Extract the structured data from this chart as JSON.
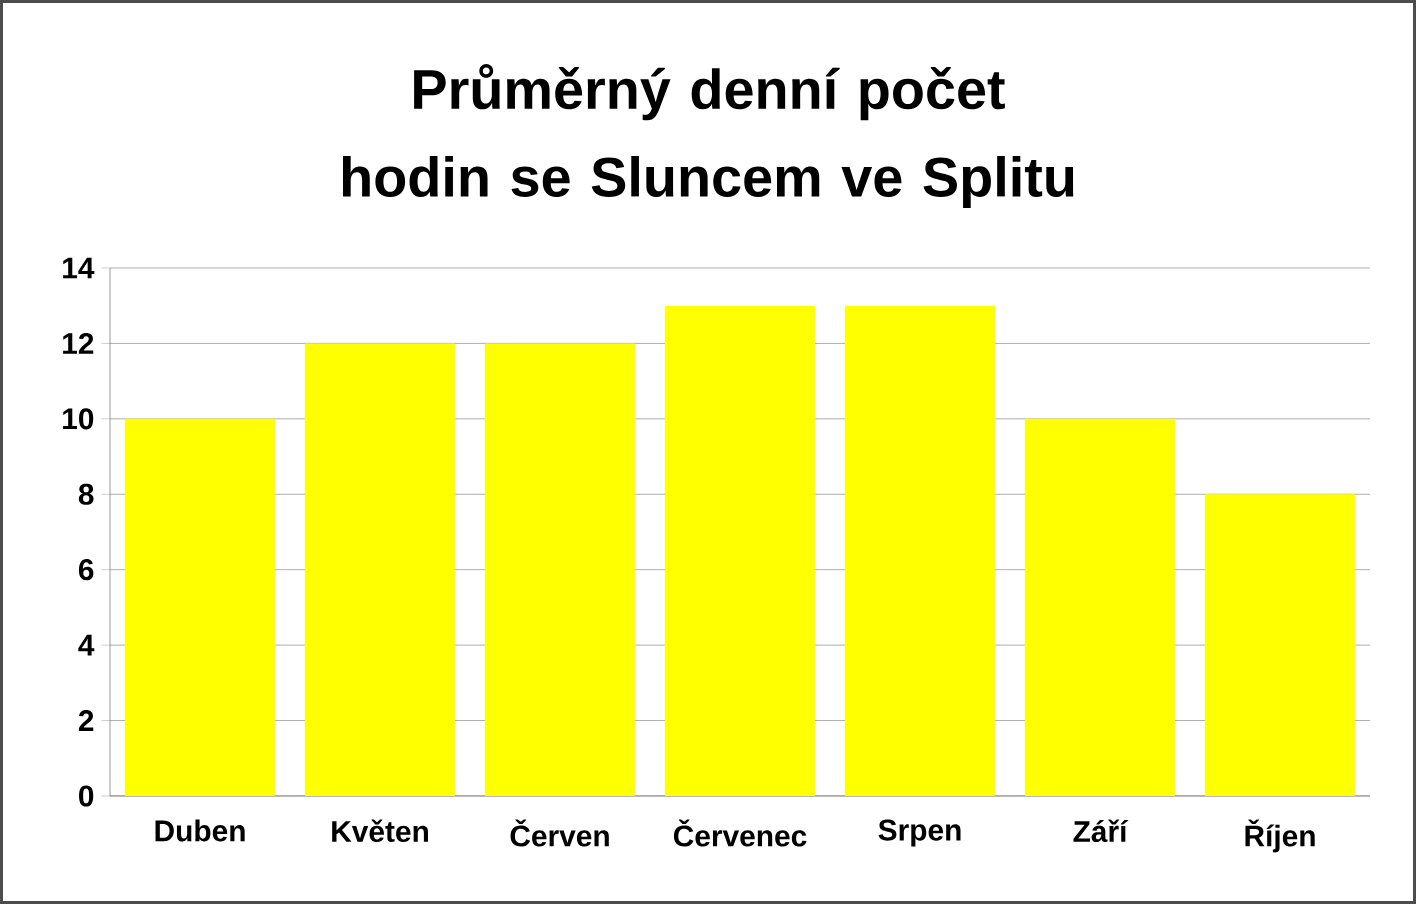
{
  "chart_data": {
    "type": "bar",
    "title": "Průměrný denní počet hodin se Sluncem ve Splitu",
    "categories": [
      "Duben",
      "Květen",
      "Červen",
      "Červenec",
      "Srpen",
      "Září",
      "Říjen"
    ],
    "values": [
      10,
      12,
      12,
      13,
      13,
      10,
      8
    ],
    "color": "#ffff00",
    "ylim": [
      0,
      14
    ],
    "yticks": [
      0,
      2,
      4,
      6,
      8,
      10,
      12,
      14
    ],
    "grid": "y"
  }
}
